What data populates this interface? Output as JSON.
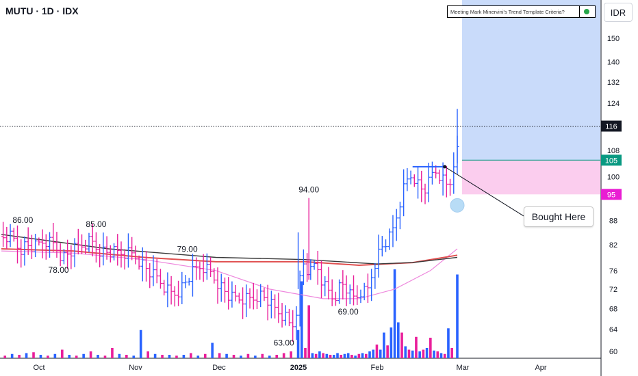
{
  "header": {
    "title": "MUTU · 1D · IDX"
  },
  "criteria_badge": {
    "label": "Meeting Mark Minervini's Trend Template Criteria?",
    "status_color": "#26a64a"
  },
  "currency_button": {
    "label": "IDR"
  },
  "callout": {
    "label": "Bought Here"
  },
  "colors": {
    "bar_up": "#2962ff",
    "bar_down": "#e91e9a",
    "ma_long": "#3a3a3a",
    "ma_mid": "#e05050",
    "ma_short": "#ee88dd",
    "target_zone": "#c9dbfa",
    "stop_zone": "#fbcdee",
    "price_line": "#131722",
    "entry_line": "#089981",
    "stop_tag": "#e91ed3"
  },
  "chart_data": {
    "type": "ohlc_bar_with_volume",
    "scale": "log",
    "x_labels": [
      "Oct",
      "Nov",
      "Dec",
      "2025",
      "Feb",
      "Mar",
      "Apr"
    ],
    "y_ticks": [
      150,
      140,
      132,
      124,
      108,
      100,
      88,
      82,
      76,
      72,
      68,
      64,
      60
    ],
    "ylim": [
      58,
      160
    ],
    "current_price": "116",
    "entry_price": "105",
    "stop_price": "95",
    "position": {
      "entry": 105,
      "stop": 95,
      "target_top": 160
    },
    "annotations": [
      {
        "text": "86.00",
        "date": "Sep 26",
        "value": 86,
        "pos": "above"
      },
      {
        "text": "78.00",
        "date": "Oct 14",
        "value": 78,
        "pos": "below"
      },
      {
        "text": "85.00",
        "date": "Oct 28",
        "value": 85,
        "pos": "above"
      },
      {
        "text": "79.00",
        "date": "Nov 28",
        "value": 79,
        "pos": "above"
      },
      {
        "text": "63.00",
        "date": "Dec 30",
        "value": 63,
        "pos": "below"
      },
      {
        "text": "94.00",
        "date": "Jan 9",
        "value": 94,
        "pos": "above"
      },
      {
        "text": "69.00",
        "date": "Jan 23",
        "value": 69,
        "pos": "below"
      }
    ],
    "close_path": [
      [
        0,
        84
      ],
      [
        6,
        84
      ],
      [
        10,
        81
      ],
      [
        14,
        82
      ],
      [
        18,
        81
      ],
      [
        24,
        83
      ],
      [
        30,
        82
      ],
      [
        34,
        79
      ],
      [
        38,
        80
      ],
      [
        42,
        81
      ],
      [
        46,
        82
      ],
      [
        50,
        83
      ],
      [
        54,
        81
      ],
      [
        60,
        80
      ],
      [
        66,
        80
      ],
      [
        72,
        80
      ],
      [
        76,
        79
      ],
      [
        80,
        77
      ],
      [
        84,
        75
      ],
      [
        88,
        74
      ],
      [
        92,
        72
      ],
      [
        96,
        71
      ],
      [
        100,
        72
      ],
      [
        104,
        74
      ],
      [
        108,
        76
      ],
      [
        112,
        77
      ],
      [
        116,
        76
      ],
      [
        120,
        74
      ],
      [
        124,
        72
      ],
      [
        128,
        70
      ],
      [
        132,
        70
      ],
      [
        136,
        70
      ],
      [
        140,
        70
      ],
      [
        144,
        71
      ],
      [
        148,
        70
      ],
      [
        152,
        68
      ],
      [
        156,
        67
      ],
      [
        160,
        66
      ],
      [
        162,
        64
      ],
      [
        164,
        66
      ],
      [
        166,
        70
      ],
      [
        168,
        78
      ],
      [
        170,
        77
      ],
      [
        172,
        75
      ],
      [
        174,
        76
      ],
      [
        176,
        78
      ],
      [
        178,
        75
      ],
      [
        180,
        73
      ],
      [
        182,
        72
      ],
      [
        184,
        71
      ],
      [
        186,
        70
      ],
      [
        188,
        72
      ],
      [
        190,
        73
      ],
      [
        192,
        73
      ],
      [
        194,
        71
      ],
      [
        196,
        70
      ],
      [
        198,
        70
      ],
      [
        200,
        71
      ],
      [
        202,
        72
      ],
      [
        204,
        71
      ],
      [
        206,
        73
      ],
      [
        208,
        77
      ],
      [
        210,
        79
      ],
      [
        212,
        81
      ],
      [
        214,
        82
      ],
      [
        216,
        83
      ],
      [
        218,
        84
      ],
      [
        220,
        87
      ],
      [
        222,
        91
      ],
      [
        224,
        95
      ],
      [
        226,
        98
      ],
      [
        228,
        100
      ],
      [
        230,
        101
      ],
      [
        232,
        99
      ],
      [
        234,
        97
      ],
      [
        236,
        96
      ],
      [
        238,
        97
      ],
      [
        240,
        99
      ],
      [
        242,
        102
      ],
      [
        244,
        101
      ],
      [
        246,
        100
      ],
      [
        248,
        98
      ],
      [
        250,
        97
      ],
      [
        252,
        100
      ],
      [
        254,
        110
      ],
      [
        255,
        108
      ]
    ],
    "spikes": [
      {
        "t": 166,
        "high": 85,
        "low": 72
      },
      {
        "t": 172,
        "high": 94,
        "low": 74
      },
      {
        "t": 255,
        "high": 122,
        "low": 104
      }
    ],
    "ma_long": [
      [
        0,
        84.5
      ],
      [
        60,
        81
      ],
      [
        120,
        79
      ],
      [
        170,
        78.5
      ],
      [
        210,
        77.5
      ],
      [
        230,
        77.8
      ],
      [
        255,
        79
      ]
    ],
    "ma_mid": [
      [
        0,
        81
      ],
      [
        40,
        80.5
      ],
      [
        80,
        79
      ],
      [
        120,
        78
      ],
      [
        170,
        78
      ],
      [
        200,
        77.2
      ],
      [
        230,
        77.8
      ],
      [
        255,
        79.5
      ]
    ],
    "ma_short": [
      [
        0,
        80.5
      ],
      [
        40,
        80
      ],
      [
        80,
        78.5
      ],
      [
        120,
        76
      ],
      [
        150,
        72
      ],
      [
        180,
        70
      ],
      [
        200,
        70
      ],
      [
        220,
        72
      ],
      [
        240,
        76
      ],
      [
        255,
        81
      ]
    ],
    "volume": [
      {
        "t": 2,
        "v": 3,
        "d": 1
      },
      {
        "t": 6,
        "v": 5,
        "d": 0
      },
      {
        "t": 10,
        "v": 4,
        "d": 1
      },
      {
        "t": 14,
        "v": 6,
        "d": 0
      },
      {
        "t": 18,
        "v": 7,
        "d": 1
      },
      {
        "t": 22,
        "v": 4,
        "d": 0
      },
      {
        "t": 26,
        "v": 3,
        "d": 1
      },
      {
        "t": 30,
        "v": 5,
        "d": 0
      },
      {
        "t": 34,
        "v": 10,
        "d": 1
      },
      {
        "t": 38,
        "v": 4,
        "d": 0
      },
      {
        "t": 42,
        "v": 3,
        "d": 1
      },
      {
        "t": 46,
        "v": 5,
        "d": 0
      },
      {
        "t": 50,
        "v": 8,
        "d": 1
      },
      {
        "t": 54,
        "v": 4,
        "d": 0
      },
      {
        "t": 58,
        "v": 3,
        "d": 1
      },
      {
        "t": 62,
        "v": 12,
        "d": 1
      },
      {
        "t": 66,
        "v": 5,
        "d": 0
      },
      {
        "t": 70,
        "v": 4,
        "d": 1
      },
      {
        "t": 74,
        "v": 3,
        "d": 0
      },
      {
        "t": 78,
        "v": 33,
        "d": 0
      },
      {
        "t": 82,
        "v": 8,
        "d": 1
      },
      {
        "t": 86,
        "v": 5,
        "d": 0
      },
      {
        "t": 90,
        "v": 4,
        "d": 1
      },
      {
        "t": 94,
        "v": 4,
        "d": 0
      },
      {
        "t": 98,
        "v": 3,
        "d": 1
      },
      {
        "t": 102,
        "v": 4,
        "d": 0
      },
      {
        "t": 106,
        "v": 6,
        "d": 1
      },
      {
        "t": 110,
        "v": 3,
        "d": 0
      },
      {
        "t": 114,
        "v": 5,
        "d": 1
      },
      {
        "t": 118,
        "v": 18,
        "d": 0
      },
      {
        "t": 122,
        "v": 6,
        "d": 1
      },
      {
        "t": 126,
        "v": 5,
        "d": 0
      },
      {
        "t": 130,
        "v": 4,
        "d": 1
      },
      {
        "t": 134,
        "v": 3,
        "d": 0
      },
      {
        "t": 138,
        "v": 5,
        "d": 1
      },
      {
        "t": 142,
        "v": 3,
        "d": 0
      },
      {
        "t": 146,
        "v": 5,
        "d": 1
      },
      {
        "t": 150,
        "v": 3,
        "d": 0
      },
      {
        "t": 154,
        "v": 4,
        "d": 1
      },
      {
        "t": 158,
        "v": 6,
        "d": 1
      },
      {
        "t": 162,
        "v": 8,
        "d": 1
      },
      {
        "t": 166,
        "v": 33,
        "d": 0
      },
      {
        "t": 168,
        "v": 90,
        "d": 0
      },
      {
        "t": 170,
        "v": 12,
        "d": 1
      },
      {
        "t": 172,
        "v": 62,
        "d": 1
      },
      {
        "t": 174,
        "v": 6,
        "d": 0
      },
      {
        "t": 176,
        "v": 5,
        "d": 1
      },
      {
        "t": 178,
        "v": 8,
        "d": 0
      },
      {
        "t": 180,
        "v": 6,
        "d": 1
      },
      {
        "t": 182,
        "v": 5,
        "d": 0
      },
      {
        "t": 184,
        "v": 4,
        "d": 1
      },
      {
        "t": 186,
        "v": 4,
        "d": 0
      },
      {
        "t": 188,
        "v": 6,
        "d": 0
      },
      {
        "t": 190,
        "v": 4,
        "d": 1
      },
      {
        "t": 192,
        "v": 5,
        "d": 0
      },
      {
        "t": 194,
        "v": 6,
        "d": 0
      },
      {
        "t": 196,
        "v": 4,
        "d": 1
      },
      {
        "t": 198,
        "v": 3,
        "d": 0
      },
      {
        "t": 200,
        "v": 5,
        "d": 1
      },
      {
        "t": 202,
        "v": 6,
        "d": 0
      },
      {
        "t": 204,
        "v": 5,
        "d": 1
      },
      {
        "t": 206,
        "v": 8,
        "d": 0
      },
      {
        "t": 208,
        "v": 10,
        "d": 0
      },
      {
        "t": 210,
        "v": 16,
        "d": 1
      },
      {
        "t": 212,
        "v": 10,
        "d": 0
      },
      {
        "t": 214,
        "v": 30,
        "d": 0
      },
      {
        "t": 216,
        "v": 15,
        "d": 1
      },
      {
        "t": 218,
        "v": 36,
        "d": 0
      },
      {
        "t": 220,
        "v": 104,
        "d": 0
      },
      {
        "t": 222,
        "v": 42,
        "d": 0
      },
      {
        "t": 224,
        "v": 30,
        "d": 1
      },
      {
        "t": 226,
        "v": 14,
        "d": 0
      },
      {
        "t": 228,
        "v": 10,
        "d": 1
      },
      {
        "t": 230,
        "v": 9,
        "d": 0
      },
      {
        "t": 232,
        "v": 25,
        "d": 1
      },
      {
        "t": 234,
        "v": 8,
        "d": 0
      },
      {
        "t": 236,
        "v": 10,
        "d": 1
      },
      {
        "t": 238,
        "v": 12,
        "d": 0
      },
      {
        "t": 240,
        "v": 24,
        "d": 1
      },
      {
        "t": 242,
        "v": 9,
        "d": 0
      },
      {
        "t": 244,
        "v": 8,
        "d": 1
      },
      {
        "t": 246,
        "v": 6,
        "d": 0
      },
      {
        "t": 248,
        "v": 5,
        "d": 1
      },
      {
        "t": 250,
        "v": 35,
        "d": 0
      },
      {
        "t": 252,
        "v": 12,
        "d": 1
      },
      {
        "t": 255,
        "v": 98,
        "d": 0
      }
    ]
  }
}
